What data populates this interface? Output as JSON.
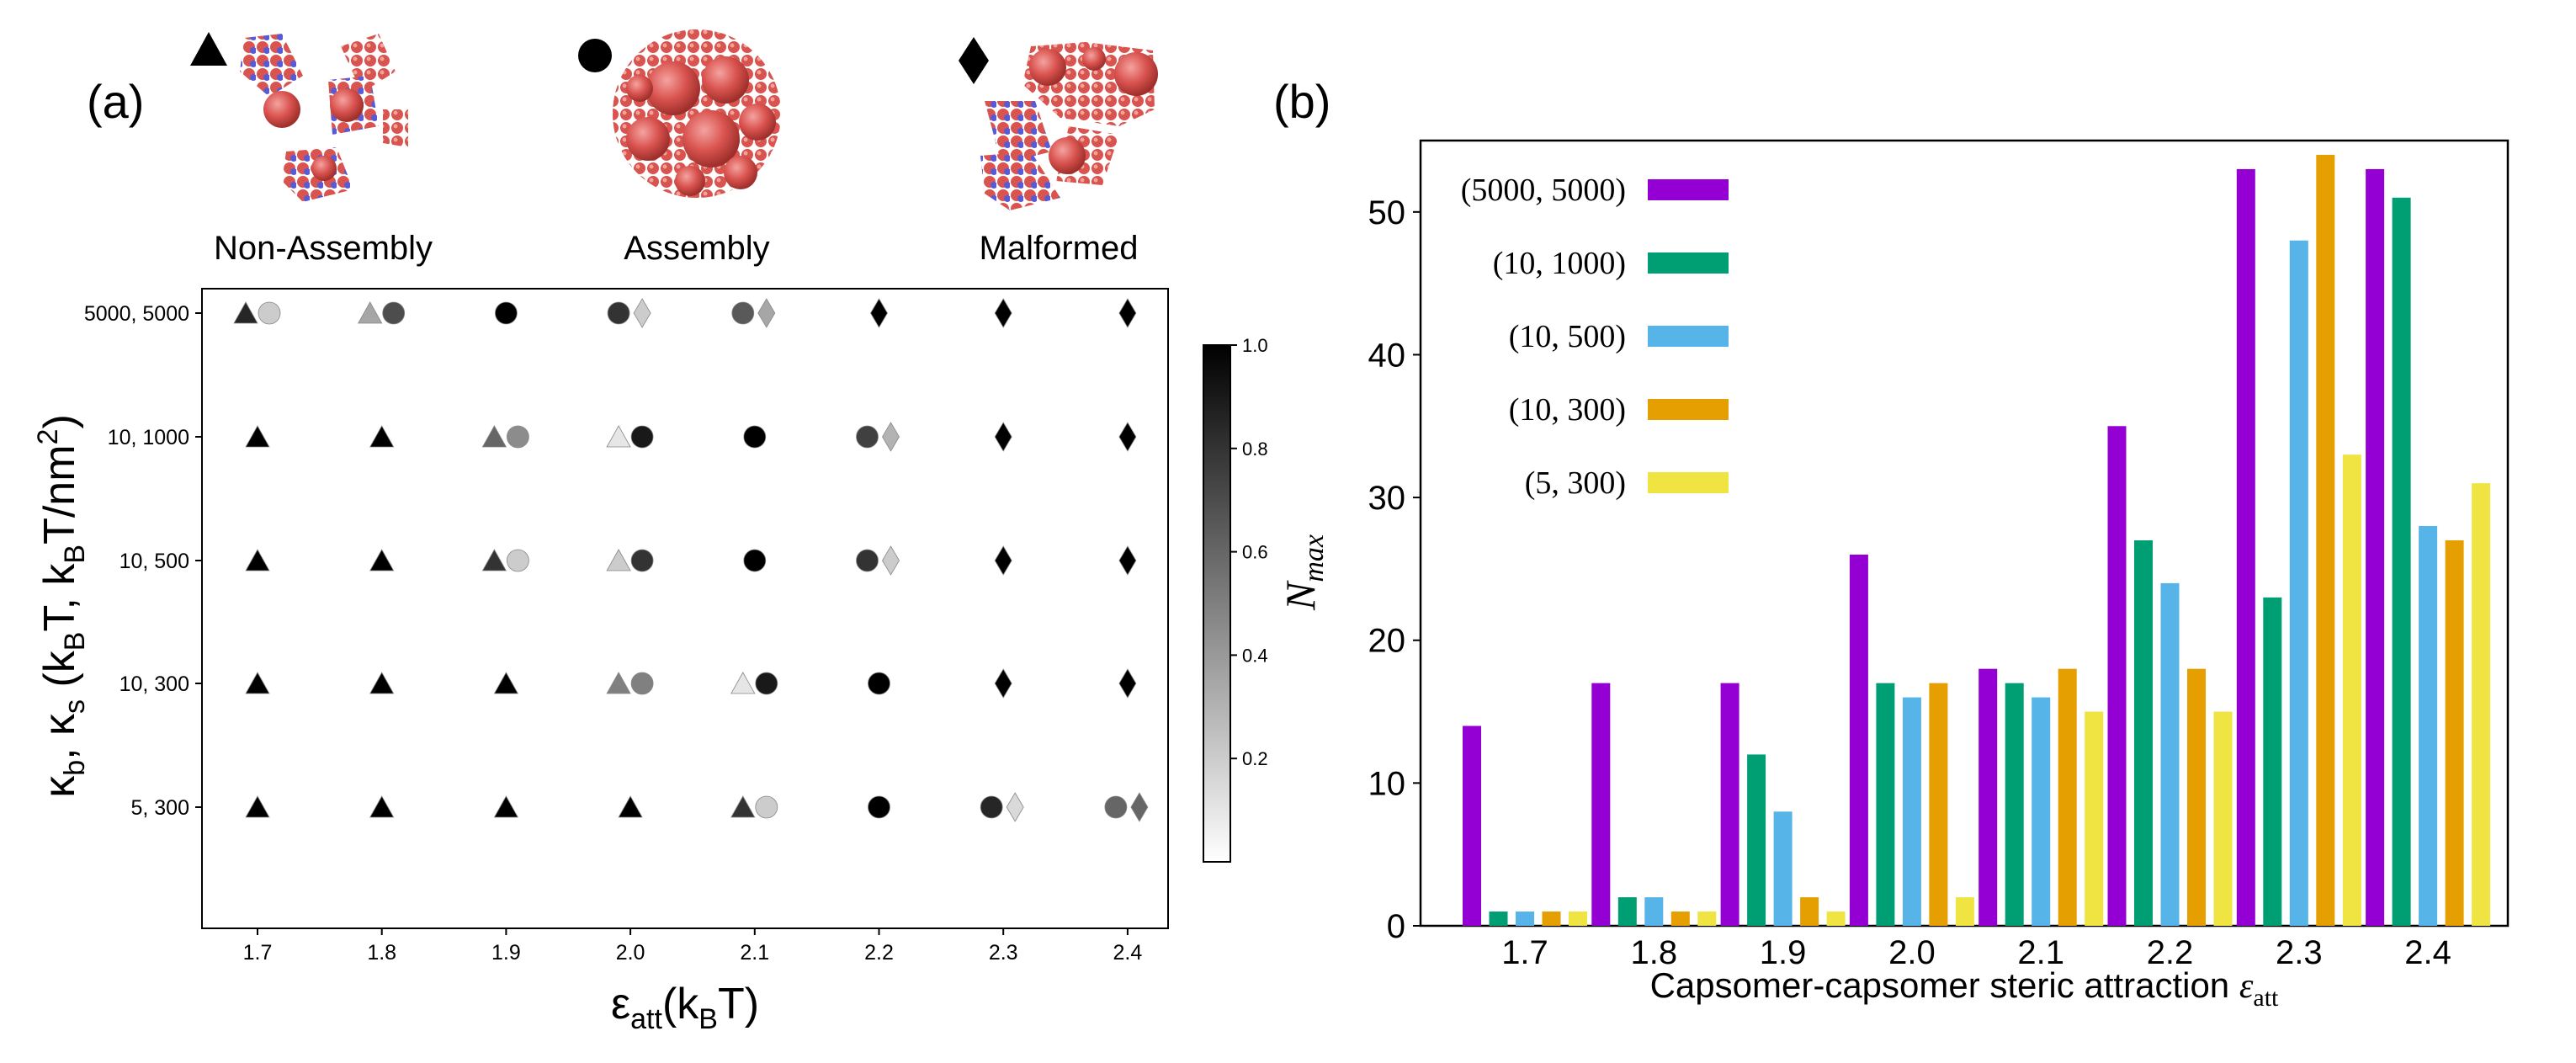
{
  "panel_a": {
    "label": "(a)",
    "legend": [
      {
        "marker": "triangle",
        "text": "Non-Assembly",
        "image": "non-assembly-render"
      },
      {
        "marker": "circle",
        "text": "Assembly",
        "image": "assembly-render"
      },
      {
        "marker": "diamond",
        "text": "Malformed",
        "image": "malformed-render"
      }
    ],
    "colorbar": {
      "ticks": [
        "0.2",
        "0.4",
        "0.6",
        "0.8",
        "1.0"
      ],
      "tick_values": [
        0.2,
        0.4,
        0.6,
        0.8,
        1.0
      ],
      "range": [
        0.0,
        1.0
      ],
      "colormap": "greys"
    },
    "ylabel_parts": {
      "kb": "κ",
      "kb_sub": "b",
      "ks": "κ",
      "ks_sub": "s",
      "rest": "(k",
      "rest_sub": "B",
      "rest2": "T, k",
      "rest2_sub": "B",
      "rest3": "T/nm",
      "rest3_sup": "2",
      "close": ")"
    },
    "xlabel_parts": {
      "eps": "ε",
      "eps_sub": "att",
      "rest": "(k",
      "rest_sub": "B",
      "close": "T)"
    }
  },
  "panel_b": {
    "label": "(b)",
    "ylabel": "N",
    "ylabel_sub": "max",
    "xlabel": "Capsomer-capsomer steric attraction ",
    "xlabel_symbol": "ε",
    "xlabel_sub": "att"
  },
  "chart_data": [
    {
      "type": "scatter",
      "x_categories": [
        "1.7",
        "1.8",
        "1.9",
        "2.0",
        "2.1",
        "2.2",
        "2.3",
        "2.4"
      ],
      "y_categories": [
        "5000, 5000",
        "10, 1000",
        "10, 500",
        "10, 300",
        "5, 300"
      ],
      "grid": false,
      "points": [
        {
          "x": "1.7",
          "y": "5000, 5000",
          "markers": [
            {
              "shape": "triangle",
              "value": 0.85
            },
            {
              "shape": "circle",
              "value": 0.2
            }
          ]
        },
        {
          "x": "1.8",
          "y": "5000, 5000",
          "markers": [
            {
              "shape": "triangle",
              "value": 0.35
            },
            {
              "shape": "circle",
              "value": 0.7
            }
          ]
        },
        {
          "x": "1.9",
          "y": "5000, 5000",
          "markers": [
            {
              "shape": "circle",
              "value": 1.0
            }
          ]
        },
        {
          "x": "2.0",
          "y": "5000, 5000",
          "markers": [
            {
              "shape": "circle",
              "value": 0.8
            },
            {
              "shape": "diamond",
              "value": 0.2
            }
          ]
        },
        {
          "x": "2.1",
          "y": "5000, 5000",
          "markers": [
            {
              "shape": "circle",
              "value": 0.65
            },
            {
              "shape": "diamond",
              "value": 0.35
            }
          ]
        },
        {
          "x": "2.2",
          "y": "5000, 5000",
          "markers": [
            {
              "shape": "diamond",
              "value": 1.0
            }
          ]
        },
        {
          "x": "2.3",
          "y": "5000, 5000",
          "markers": [
            {
              "shape": "diamond",
              "value": 1.0
            }
          ]
        },
        {
          "x": "2.4",
          "y": "5000, 5000",
          "markers": [
            {
              "shape": "diamond",
              "value": 1.0
            }
          ]
        },
        {
          "x": "1.7",
          "y": "10, 1000",
          "markers": [
            {
              "shape": "triangle",
              "value": 1.0
            }
          ]
        },
        {
          "x": "1.8",
          "y": "10, 1000",
          "markers": [
            {
              "shape": "triangle",
              "value": 1.0
            }
          ]
        },
        {
          "x": "1.9",
          "y": "10, 1000",
          "markers": [
            {
              "shape": "triangle",
              "value": 0.6
            },
            {
              "shape": "circle",
              "value": 0.45
            }
          ]
        },
        {
          "x": "2.0",
          "y": "10, 1000",
          "markers": [
            {
              "shape": "triangle",
              "value": 0.1
            },
            {
              "shape": "circle",
              "value": 0.9
            }
          ]
        },
        {
          "x": "2.1",
          "y": "10, 1000",
          "markers": [
            {
              "shape": "circle",
              "value": 1.0
            }
          ]
        },
        {
          "x": "2.2",
          "y": "10, 1000",
          "markers": [
            {
              "shape": "circle",
              "value": 0.75
            },
            {
              "shape": "diamond",
              "value": 0.3
            }
          ]
        },
        {
          "x": "2.3",
          "y": "10, 1000",
          "markers": [
            {
              "shape": "diamond",
              "value": 1.0
            }
          ]
        },
        {
          "x": "2.4",
          "y": "10, 1000",
          "markers": [
            {
              "shape": "diamond",
              "value": 1.0
            }
          ]
        },
        {
          "x": "1.7",
          "y": "10, 500",
          "markers": [
            {
              "shape": "triangle",
              "value": 1.0
            }
          ]
        },
        {
          "x": "1.8",
          "y": "10, 500",
          "markers": [
            {
              "shape": "triangle",
              "value": 1.0
            }
          ]
        },
        {
          "x": "1.9",
          "y": "10, 500",
          "markers": [
            {
              "shape": "triangle",
              "value": 0.8
            },
            {
              "shape": "circle",
              "value": 0.2
            }
          ]
        },
        {
          "x": "2.0",
          "y": "10, 500",
          "markers": [
            {
              "shape": "triangle",
              "value": 0.2
            },
            {
              "shape": "circle",
              "value": 0.8
            }
          ]
        },
        {
          "x": "2.1",
          "y": "10, 500",
          "markers": [
            {
              "shape": "circle",
              "value": 1.0
            }
          ]
        },
        {
          "x": "2.2",
          "y": "10, 500",
          "markers": [
            {
              "shape": "circle",
              "value": 0.8
            },
            {
              "shape": "diamond",
              "value": 0.2
            }
          ]
        },
        {
          "x": "2.3",
          "y": "10, 500",
          "markers": [
            {
              "shape": "diamond",
              "value": 1.0
            }
          ]
        },
        {
          "x": "2.4",
          "y": "10, 500",
          "markers": [
            {
              "shape": "diamond",
              "value": 1.0
            }
          ]
        },
        {
          "x": "1.7",
          "y": "10, 300",
          "markers": [
            {
              "shape": "triangle",
              "value": 1.0
            }
          ]
        },
        {
          "x": "1.8",
          "y": "10, 300",
          "markers": [
            {
              "shape": "triangle",
              "value": 1.0
            }
          ]
        },
        {
          "x": "1.9",
          "y": "10, 300",
          "markers": [
            {
              "shape": "triangle",
              "value": 1.0
            }
          ]
        },
        {
          "x": "2.0",
          "y": "10, 300",
          "markers": [
            {
              "shape": "triangle",
              "value": 0.5
            },
            {
              "shape": "circle",
              "value": 0.5
            }
          ]
        },
        {
          "x": "2.1",
          "y": "10, 300",
          "markers": [
            {
              "shape": "triangle",
              "value": 0.1
            },
            {
              "shape": "circle",
              "value": 0.9
            }
          ]
        },
        {
          "x": "2.2",
          "y": "10, 300",
          "markers": [
            {
              "shape": "circle",
              "value": 1.0
            }
          ]
        },
        {
          "x": "2.3",
          "y": "10, 300",
          "markers": [
            {
              "shape": "diamond",
              "value": 1.0
            }
          ]
        },
        {
          "x": "2.4",
          "y": "10, 300",
          "markers": [
            {
              "shape": "diamond",
              "value": 1.0
            }
          ]
        },
        {
          "x": "1.7",
          "y": "5, 300",
          "markers": [
            {
              "shape": "triangle",
              "value": 1.0
            }
          ]
        },
        {
          "x": "1.8",
          "y": "5, 300",
          "markers": [
            {
              "shape": "triangle",
              "value": 1.0
            }
          ]
        },
        {
          "x": "1.9",
          "y": "5, 300",
          "markers": [
            {
              "shape": "triangle",
              "value": 1.0
            }
          ]
        },
        {
          "x": "2.0",
          "y": "5, 300",
          "markers": [
            {
              "shape": "triangle",
              "value": 1.0
            }
          ]
        },
        {
          "x": "2.1",
          "y": "5, 300",
          "markers": [
            {
              "shape": "triangle",
              "value": 0.8
            },
            {
              "shape": "circle",
              "value": 0.2
            }
          ]
        },
        {
          "x": "2.2",
          "y": "5, 300",
          "markers": [
            {
              "shape": "circle",
              "value": 1.0
            }
          ]
        },
        {
          "x": "2.3",
          "y": "5, 300",
          "markers": [
            {
              "shape": "circle",
              "value": 0.85
            },
            {
              "shape": "diamond",
              "value": 0.15
            }
          ]
        },
        {
          "x": "2.4",
          "y": "5, 300",
          "markers": [
            {
              "shape": "circle",
              "value": 0.6
            },
            {
              "shape": "diamond",
              "value": 0.6
            }
          ]
        }
      ]
    },
    {
      "type": "bar",
      "categories": [
        "1.7",
        "1.8",
        "1.9",
        "2.0",
        "2.1",
        "2.2",
        "2.3",
        "2.4"
      ],
      "ylim": [
        0,
        55
      ],
      "yticks": [
        0,
        10,
        20,
        30,
        40,
        50
      ],
      "grid": false,
      "legend_position": "upper-left",
      "series": [
        {
          "name": "(5000, 5000)",
          "color": "#9400D3",
          "values": [
            14,
            17,
            17,
            26,
            18,
            35,
            53,
            53
          ]
        },
        {
          "name": "(10, 1000)",
          "color": "#009E73",
          "values": [
            1,
            2,
            12,
            17,
            17,
            27,
            23,
            51
          ]
        },
        {
          "name": "(10, 500)",
          "color": "#56B4E9",
          "values": [
            1,
            2,
            8,
            16,
            16,
            24,
            48,
            28
          ]
        },
        {
          "name": "(10, 300)",
          "color": "#E69F00",
          "values": [
            1,
            1,
            2,
            17,
            18,
            18,
            54,
            27
          ]
        },
        {
          "name": "(5, 300)",
          "color": "#F0E442",
          "values": [
            1,
            1,
            1,
            2,
            15,
            15,
            33,
            31
          ]
        }
      ]
    }
  ]
}
